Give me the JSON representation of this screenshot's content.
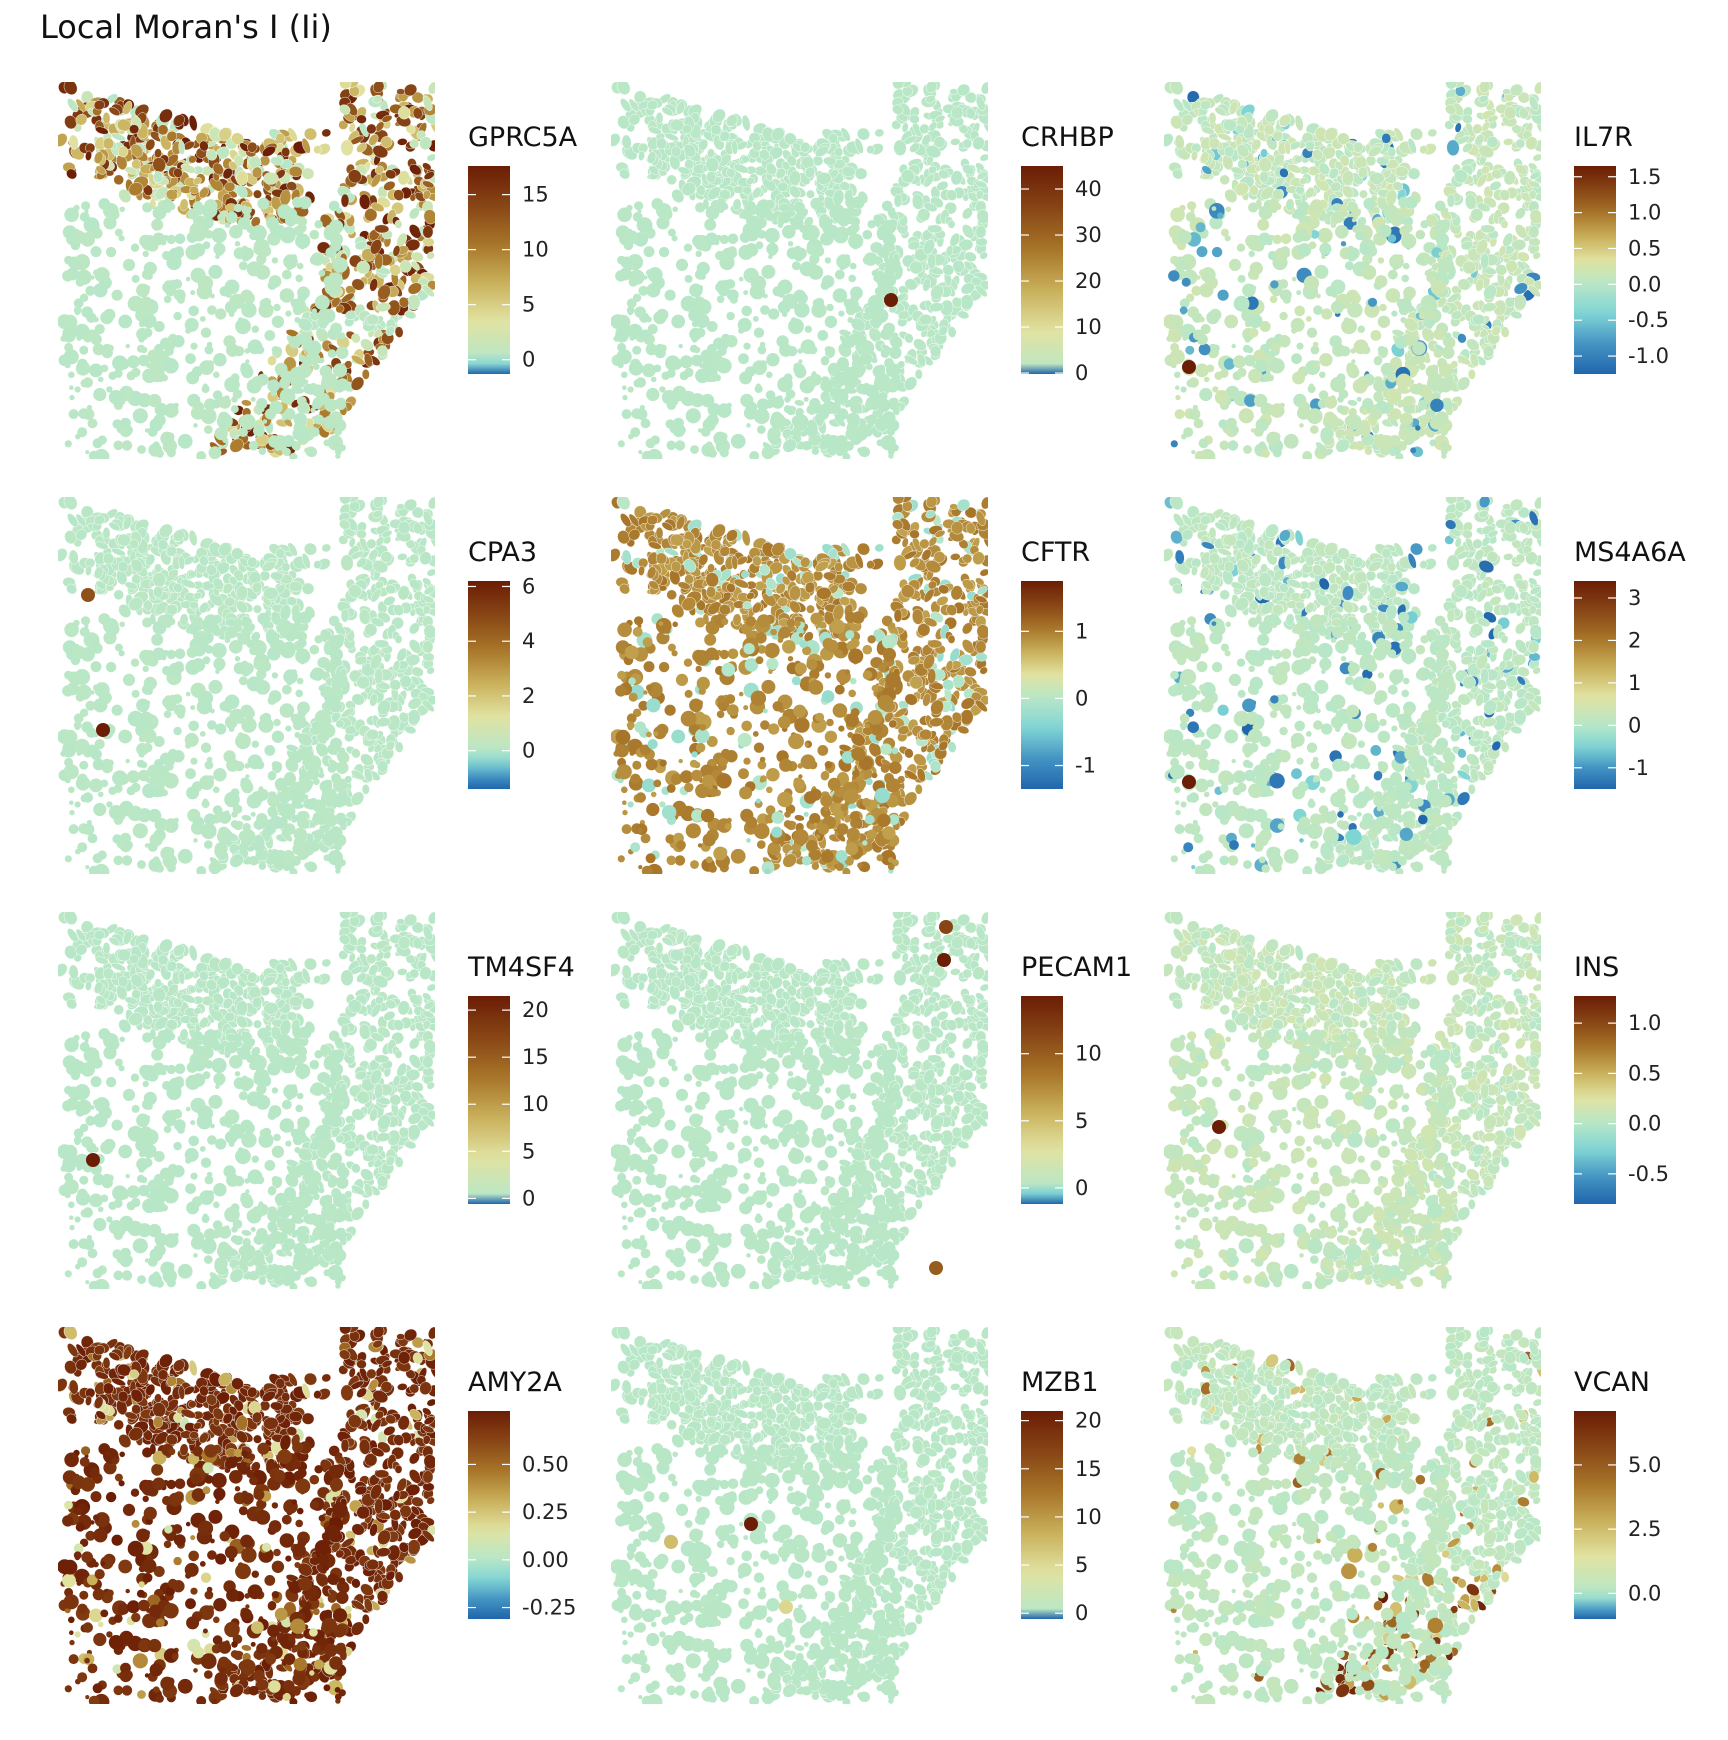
{
  "title": "Local Moran's I (Ii)",
  "colors": {
    "background": "#ffffff",
    "baseline_cell": "#c8e8c4",
    "palette": [
      "#2166ac",
      "#4393c3",
      "#7fd4d4",
      "#b7e7c8",
      "#e1e3a2",
      "#c9b05a",
      "#a77428",
      "#874515",
      "#6b1d05"
    ]
  },
  "chart_data": [
    {
      "type": "heatmap",
      "gene": "GPRC5A",
      "ticks": [
        "0",
        "5",
        "10",
        "15"
      ],
      "tick_values": [
        0,
        5,
        10,
        15
      ],
      "range": [
        -1.3,
        17.6
      ],
      "pattern": "high-along-left-top-and-right-bands"
    },
    {
      "type": "heatmap",
      "gene": "CRHBP",
      "ticks": [
        "0",
        "10",
        "20",
        "30",
        "40"
      ],
      "tick_values": [
        0,
        10,
        20,
        30,
        40
      ],
      "range": [
        -0.2,
        45
      ],
      "pattern": "single-hotspot-center-right"
    },
    {
      "type": "heatmap",
      "gene": "IL7R",
      "ticks": [
        "-1.0",
        "-0.5",
        "0.0",
        "0.5",
        "1.0",
        "1.5"
      ],
      "tick_values": [
        -1.0,
        -0.5,
        0.0,
        0.5,
        1.0,
        1.5
      ],
      "range": [
        -1.25,
        1.65
      ],
      "pattern": "near-zero-scattered-blue-dots"
    },
    {
      "type": "heatmap",
      "gene": "CPA3",
      "ticks": [
        "0",
        "2",
        "4",
        "6"
      ],
      "tick_values": [
        0,
        2,
        4,
        6
      ],
      "range": [
        -1.4,
        6.2
      ],
      "pattern": "near-zero-two-spots-left"
    },
    {
      "type": "heatmap",
      "gene": "CFTR",
      "ticks": [
        "-1",
        "0",
        "1"
      ],
      "tick_values": [
        -1,
        0,
        1
      ],
      "range": [
        -1.35,
        1.75
      ],
      "pattern": "mostly-moderate-yellow"
    },
    {
      "type": "heatmap",
      "gene": "MS4A6A",
      "ticks": [
        "-1",
        "0",
        "1",
        "2",
        "3"
      ],
      "tick_values": [
        -1,
        0,
        1,
        2,
        3
      ],
      "range": [
        -1.5,
        3.4
      ],
      "pattern": "near-zero-scattered-blue-dots"
    },
    {
      "type": "heatmap",
      "gene": "TM4SF4",
      "ticks": [
        "0",
        "5",
        "10",
        "15",
        "20"
      ],
      "tick_values": [
        0,
        5,
        10,
        15,
        20
      ],
      "range": [
        -0.6,
        21.5
      ],
      "pattern": "near-zero-one-spot-lower-left"
    },
    {
      "type": "heatmap",
      "gene": "PECAM1",
      "ticks": [
        "0",
        "5",
        "10"
      ],
      "tick_values": [
        0,
        5,
        10
      ],
      "range": [
        -1.2,
        14.3
      ],
      "pattern": "near-zero-spots-right-edge"
    },
    {
      "type": "heatmap",
      "gene": "INS",
      "ticks": [
        "-0.5",
        "0.0",
        "0.5",
        "1.0"
      ],
      "tick_values": [
        -0.5,
        0.0,
        0.5,
        1.0
      ],
      "range": [
        -0.8,
        1.27
      ],
      "pattern": "near-zero-one-spot-center-left"
    },
    {
      "type": "heatmap",
      "gene": "AMY2A",
      "ticks": [
        "-0.25",
        "0.00",
        "0.25",
        "0.50"
      ],
      "tick_values": [
        -0.25,
        0.0,
        0.25,
        0.5
      ],
      "range": [
        -0.31,
        0.78
      ],
      "pattern": "mostly-high-dark-red"
    },
    {
      "type": "heatmap",
      "gene": "MZB1",
      "ticks": [
        "0",
        "5",
        "10",
        "15",
        "20"
      ],
      "tick_values": [
        0,
        5,
        10,
        15,
        20
      ],
      "range": [
        -0.6,
        21
      ],
      "pattern": "near-zero-few-spots"
    },
    {
      "type": "heatmap",
      "gene": "VCAN",
      "ticks": [
        "0.0",
        "2.5",
        "5.0"
      ],
      "tick_values": [
        0.0,
        2.5,
        5.0
      ],
      "range": [
        -1.0,
        7.1
      ],
      "pattern": "high-lower-right-band"
    }
  ]
}
